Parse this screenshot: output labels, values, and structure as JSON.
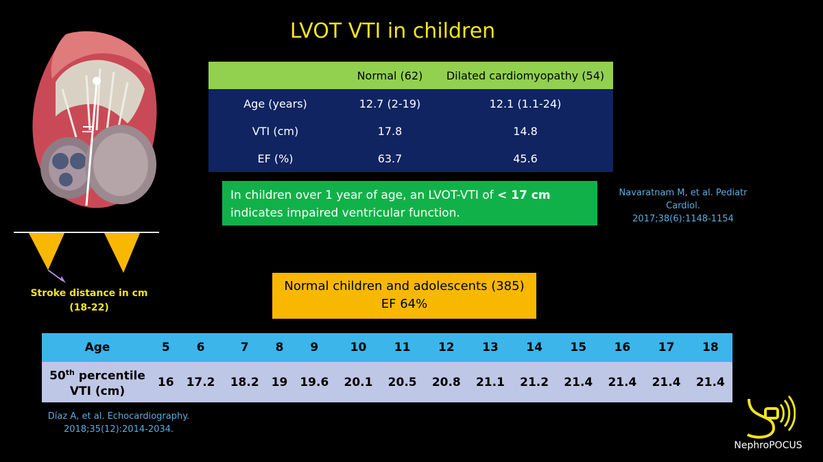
{
  "title": "LVOT VTI in children",
  "comparison_table": {
    "headers": [
      "",
      "Normal (62)",
      "Dilated cardiomyopathy (54)"
    ],
    "rows": [
      [
        "Age (years)",
        "12.7 (2-19)",
        "12.1 (1.1-24)"
      ],
      [
        "VTI (cm)",
        "17.8",
        "14.8"
      ],
      [
        "EF (%)",
        "63.7",
        "45.6"
      ]
    ]
  },
  "note": {
    "text_before": "In children over 1 year of age, an LVOT-VTI of ",
    "highlight": "< 17 cm",
    "text_after": " indicates impaired ventricular function."
  },
  "reference_1": {
    "line1": "Navaratnam M, et al. Pediatr Cardiol.",
    "line2": "2017;38(6):1148-1154"
  },
  "stroke_label": {
    "line1": "Stroke distance in cm",
    "line2": "(18-22)"
  },
  "normal_box": {
    "line1": "Normal children and adolescents (385)",
    "line2": "EF 64%"
  },
  "percentile_table": {
    "age_header": "Age",
    "ages": [
      "5",
      "6",
      "7",
      "8",
      "9",
      "10",
      "11",
      "12",
      "13",
      "14",
      "15",
      "16",
      "17",
      "18"
    ],
    "row_label_prefix": "50",
    "row_label_sup": "th",
    "row_label_rest": " percentile",
    "row_label_line2": "VTI (cm)",
    "values": [
      "16",
      "17.2",
      "18.2",
      "19",
      "19.6",
      "20.1",
      "20.5",
      "20.8",
      "21.1",
      "21.2",
      "21.4",
      "21.4",
      "21.4",
      "21.4"
    ]
  },
  "reference_2": {
    "line1": "Díaz A, et al. Echocardiography.",
    "line2": "2018;35(12):2014-2034."
  },
  "logo": {
    "name": "NephroPOCUS",
    "icon": "ultrasound-probe-icon"
  },
  "colors": {
    "title": "#f3e51a",
    "table_header": "#92d050",
    "table_body": "#0f2461",
    "note_bg": "#11b149",
    "orange_box": "#f9b800",
    "age_header_bg": "#3cb5ea",
    "percentile_row_bg": "#bfc7e6",
    "reference_text": "#5aaee0"
  }
}
